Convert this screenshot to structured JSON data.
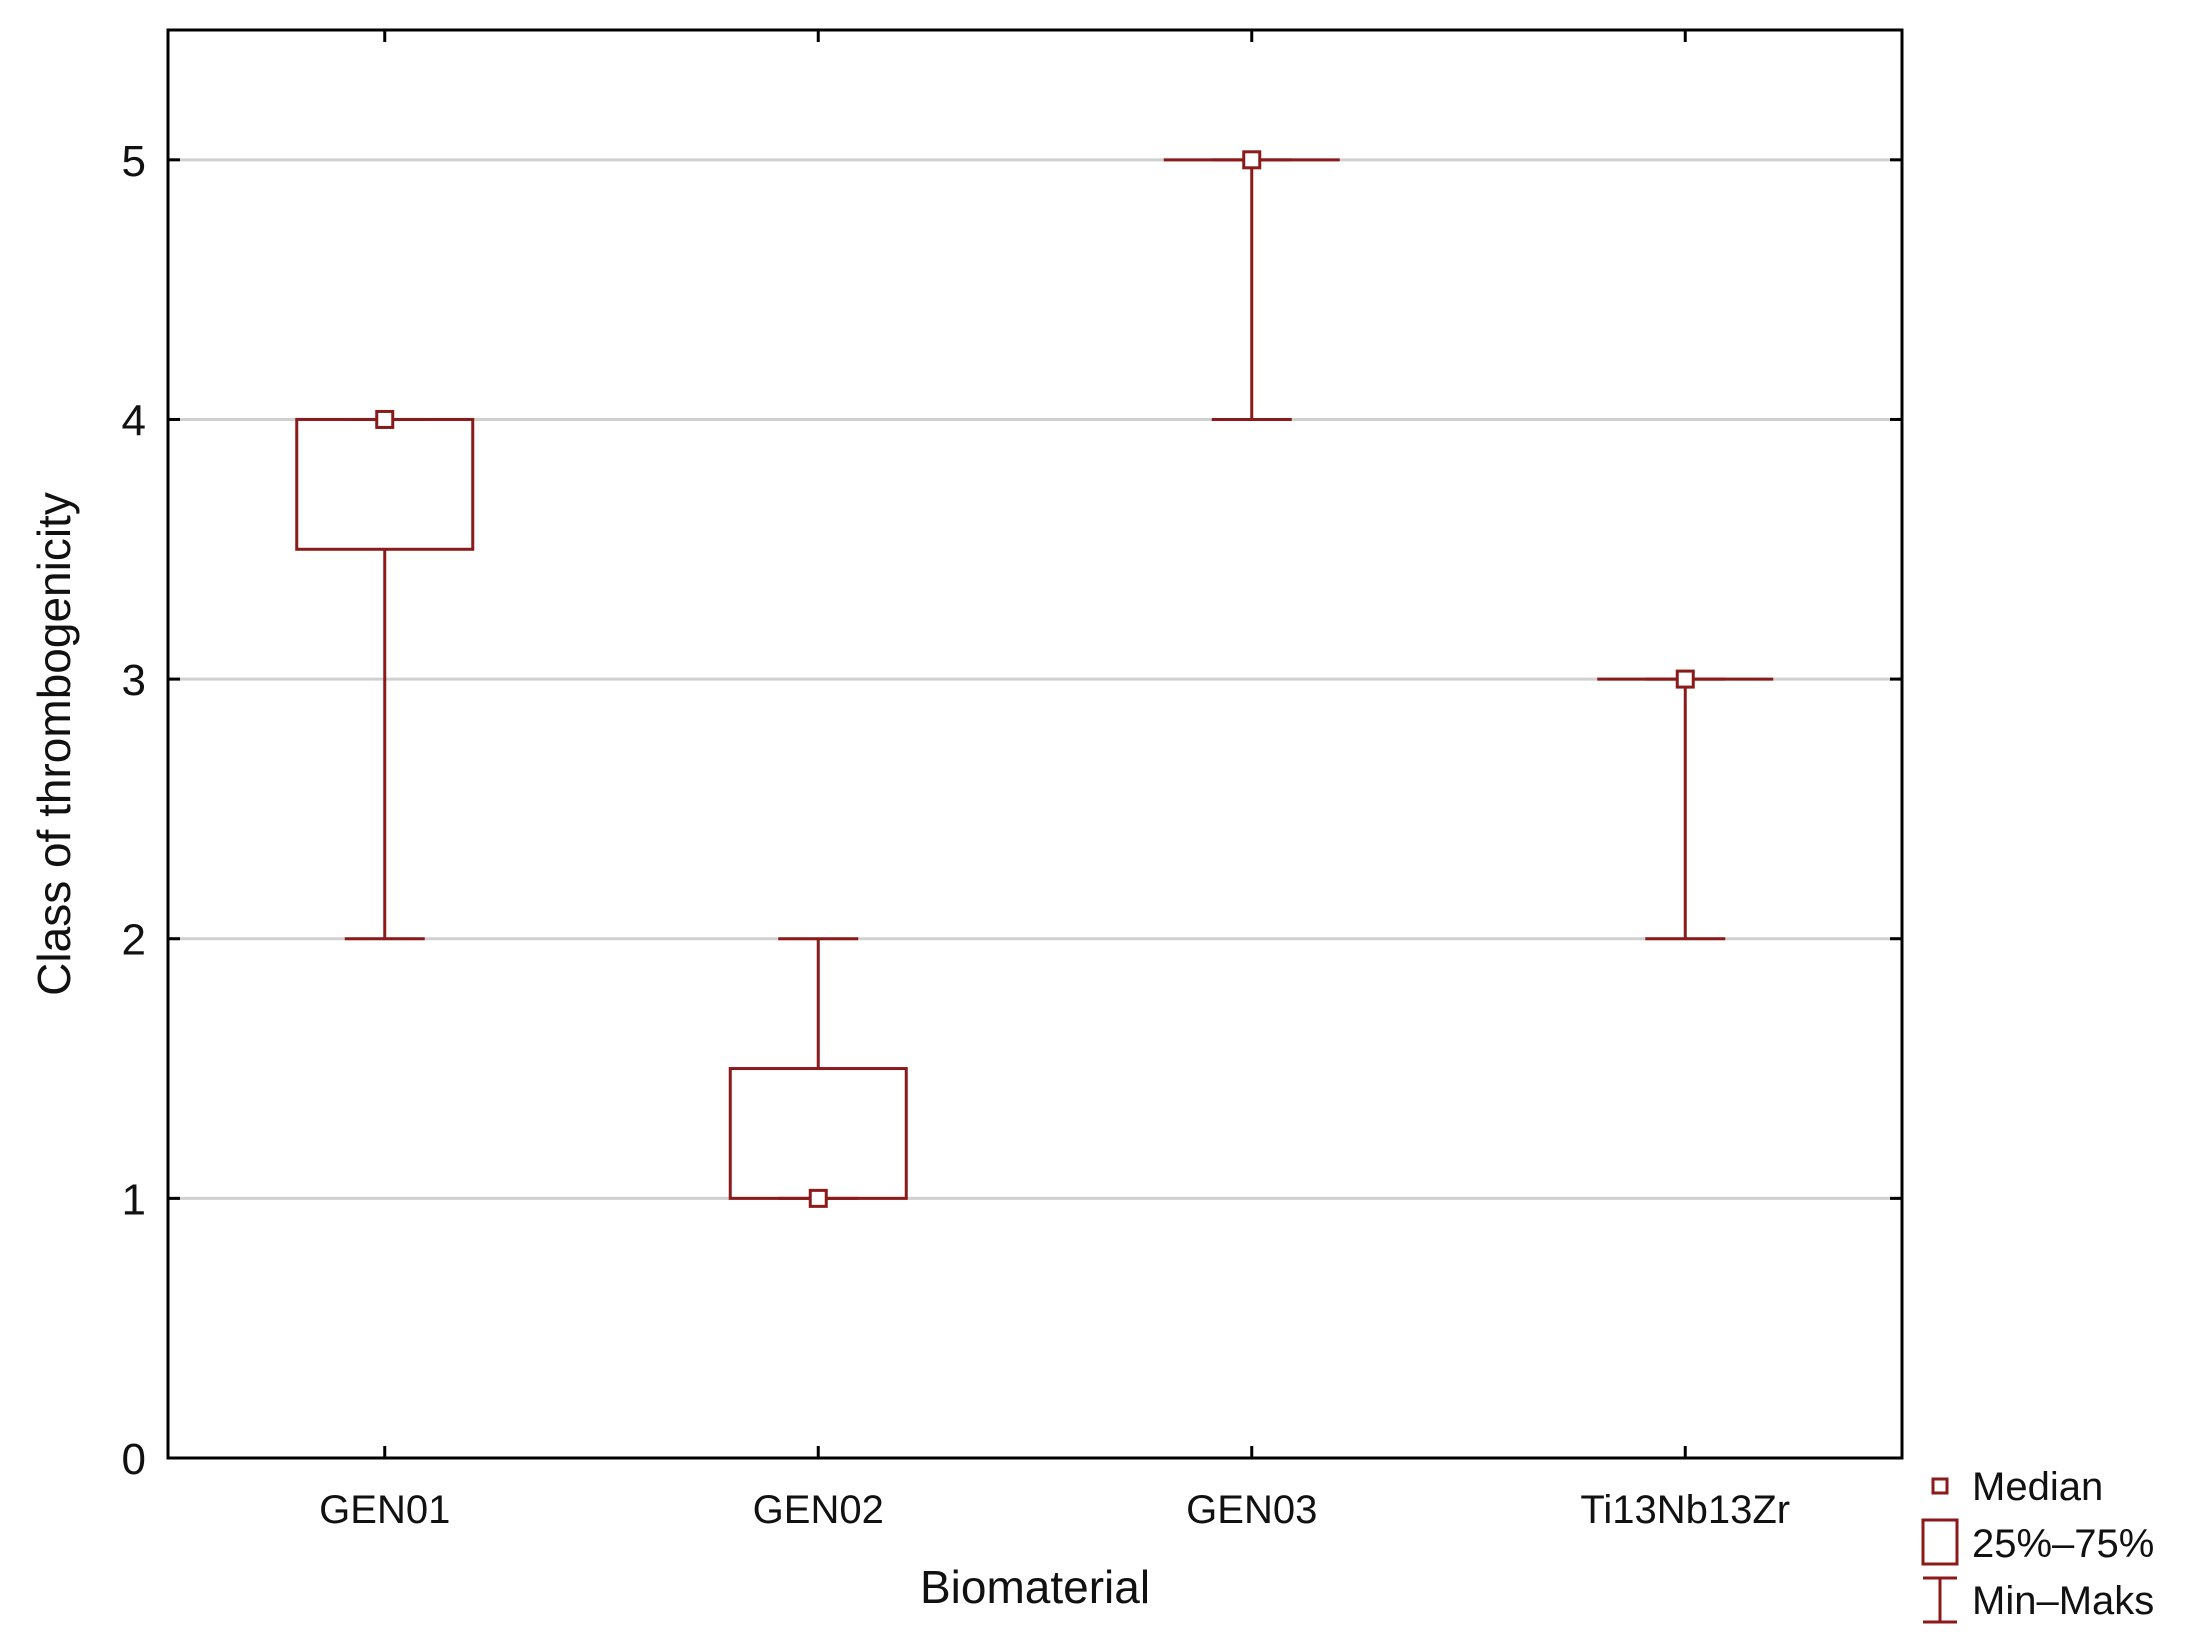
{
  "chart_data": {
    "type": "box",
    "xlabel": "Biomaterial",
    "ylabel": "Class of thrombogenicity",
    "ylim": [
      0,
      5.5
    ],
    "yticks": [
      0,
      1,
      2,
      3,
      4,
      5
    ],
    "grid": true,
    "legend_position": "bottom-right",
    "categories": [
      "GEN01",
      "GEN02",
      "GEN03",
      "Ti13Nb13Zr"
    ],
    "boxes": [
      {
        "category": "GEN01",
        "median": 4,
        "q1": 3.5,
        "q3": 4,
        "min": 2,
        "max": 4
      },
      {
        "category": "GEN02",
        "median": 1,
        "q1": 1,
        "q3": 1.5,
        "min": 1,
        "max": 2
      },
      {
        "category": "GEN03",
        "median": 5,
        "q1": 5,
        "q3": 5,
        "min": 4,
        "max": 5
      },
      {
        "category": "Ti13Nb13Zr",
        "median": 3,
        "q1": 3,
        "q3": 3,
        "min": 2,
        "max": 3
      }
    ],
    "legend": {
      "median": "Median",
      "box": "25%–75%",
      "whisker": "Min–Maks"
    },
    "colors": {
      "series": "#8b1a1a",
      "grid": "#d0d0d0",
      "axis": "#000000"
    }
  }
}
